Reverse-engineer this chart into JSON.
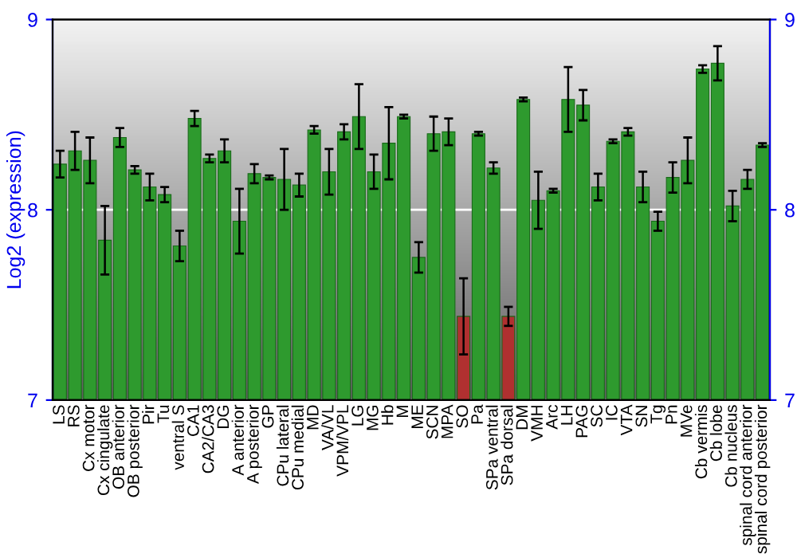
{
  "chart_data": {
    "type": "bar",
    "ylabel": "Log2 (expression)",
    "categories": [
      "LS",
      "RS",
      "Cx motor",
      "Cx cingulate",
      "OB anterior",
      "OB posterior",
      "Pir",
      "Tu",
      "ventral S",
      "CA1",
      "CA2/CA3",
      "DG",
      "A anterior",
      "A posterior",
      "GP",
      "CPu lateral",
      "CPu medial",
      "MD",
      "VA/VL",
      "VPM/VPL",
      "LG",
      "MG",
      "Hb",
      "M",
      "ME",
      "SCN",
      "MPA",
      "SO",
      "Pa",
      "SPa ventral",
      "SPa dorsal",
      "DM",
      "VMH",
      "Arc",
      "LH",
      "PAG",
      "SC",
      "IC",
      "VTA",
      "SN",
      "Tg",
      "Pn",
      "MVe",
      "Cb vermis",
      "Cb lobe",
      "Cb nucleus",
      "spinal cord anterior",
      "spinal cord posterior"
    ],
    "values": [
      8.24,
      8.31,
      8.26,
      7.84,
      8.38,
      8.21,
      8.12,
      8.08,
      7.81,
      8.48,
      8.27,
      8.31,
      7.94,
      8.19,
      8.17,
      8.16,
      8.13,
      8.42,
      8.2,
      8.41,
      8.49,
      8.2,
      8.35,
      8.49,
      7.75,
      8.4,
      8.41,
      7.44,
      8.4,
      8.22,
      7.44,
      8.58,
      8.05,
      8.1,
      8.58,
      8.55,
      8.12,
      8.36,
      8.41,
      8.12,
      7.94,
      8.17,
      8.26,
      8.74,
      8.77,
      8.02,
      8.16,
      8.34
    ],
    "errors": [
      0.07,
      0.1,
      0.12,
      0.18,
      0.05,
      0.02,
      0.07,
      0.04,
      0.08,
      0.04,
      0.02,
      0.06,
      0.17,
      0.05,
      0.01,
      0.16,
      0.06,
      0.02,
      0.12,
      0.04,
      0.17,
      0.09,
      0.19,
      0.01,
      0.08,
      0.09,
      0.07,
      0.2,
      0.01,
      0.03,
      0.05,
      0.01,
      0.15,
      0.01,
      0.17,
      0.08,
      0.07,
      0.01,
      0.02,
      0.08,
      0.05,
      0.08,
      0.12,
      0.02,
      0.09,
      0.08,
      0.05,
      0.01
    ],
    "colors": [
      "#2e9a2e",
      "#2e9a2e",
      "#2e9a2e",
      "#2e9a2e",
      "#2e9a2e",
      "#2e9a2e",
      "#2e9a2e",
      "#2e9a2e",
      "#2e9a2e",
      "#2e9a2e",
      "#2e9a2e",
      "#2e9a2e",
      "#2e9a2e",
      "#2e9a2e",
      "#2e9a2e",
      "#2e9a2e",
      "#2e9a2e",
      "#2e9a2e",
      "#2e9a2e",
      "#2e9a2e",
      "#2e9a2e",
      "#2e9a2e",
      "#2e9a2e",
      "#2e9a2e",
      "#2e9a2e",
      "#2e9a2e",
      "#2e9a2e",
      "#b03030",
      "#2e9a2e",
      "#2e9a2e",
      "#b03030",
      "#2e9a2e",
      "#2e9a2e",
      "#2e9a2e",
      "#2e9a2e",
      "#2e9a2e",
      "#2e9a2e",
      "#2e9a2e",
      "#2e9a2e",
      "#2e9a2e",
      "#2e9a2e",
      "#2e9a2e",
      "#2e9a2e",
      "#2e9a2e",
      "#2e9a2e",
      "#2e9a2e",
      "#2e9a2e",
      "#2e9a2e"
    ],
    "ylim": [
      7,
      9
    ],
    "yticks": [
      7,
      8,
      9
    ],
    "y2lim": [
      7,
      9
    ],
    "y2ticks": [
      7,
      8,
      9
    ],
    "grid": "y"
  }
}
